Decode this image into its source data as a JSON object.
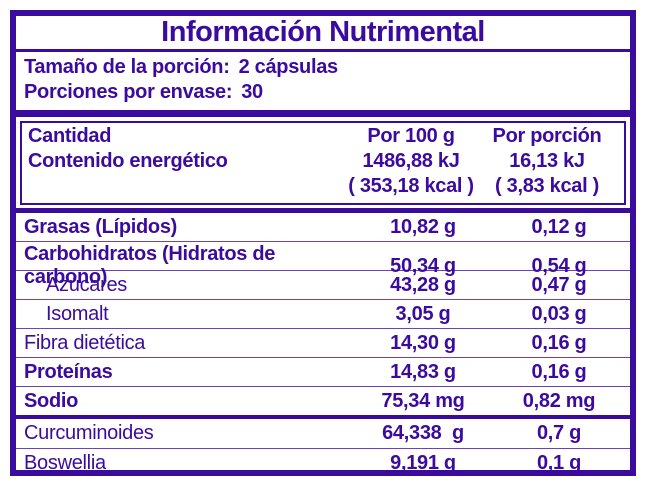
{
  "colors": {
    "purple": "#3b0b9e",
    "thin_line": "#6c42bc",
    "background": "#ffffff"
  },
  "title": "Información Nutrimental",
  "serving": {
    "size_label": "Tamaño de la porción:",
    "size_value": "2 cápsulas",
    "count_label": "Porciones por envase:",
    "count_value": "30"
  },
  "energy_header": {
    "amount_label": "Cantidad",
    "energy_label": "Contenido energético",
    "per100_title": "Por 100 g",
    "per100_kj": "1486,88 kJ",
    "per100_kcal": "( 353,18 kcal )",
    "portion_title": "Por porción",
    "portion_kj": "16,13 kJ",
    "portion_kcal": "( 3,83 kcal )"
  },
  "rows": [
    {
      "label": "Grasas (Lípidos)",
      "per100": "10,82 g",
      "portion": "0,12 g"
    },
    {
      "label": "Carbohidratos (Hidratos de carbono)",
      "per100": "50,34 g",
      "portion": "0,54 g"
    },
    {
      "label": "Azúcares",
      "per100": "43,28 g",
      "portion": "0,47 g"
    },
    {
      "label": "Isomalt",
      "per100": "3,05 g",
      "portion": "0,03 g"
    },
    {
      "label": "Fibra dietética",
      "per100": "14,30 g",
      "portion": "0,16 g"
    },
    {
      "label": "Proteínas",
      "per100": "14,83 g",
      "portion": "0,16 g"
    },
    {
      "label": "Sodio",
      "per100": "75,34 mg",
      "portion": "0,82 mg"
    }
  ],
  "extra_rows": [
    {
      "label": "Curcuminoides",
      "per100": "64,338  g",
      "portion": "0,7 g"
    },
    {
      "label": "Boswellia",
      "per100": "9,191 g",
      "portion": "0,1 g"
    }
  ]
}
